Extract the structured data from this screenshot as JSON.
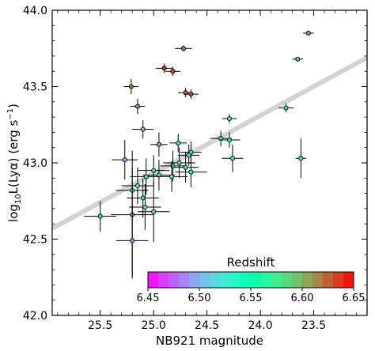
{
  "chart_data": {
    "type": "scatter",
    "xlabel": "NB921 magnitude",
    "ylabel_parts": {
      "base": "log",
      "sub": "10",
      "mid": "L(Lyα) (erg s",
      "sup": "−1",
      "end": ")"
    },
    "xlim": [
      25.95,
      23.0
    ],
    "ylim": [
      42.0,
      44.0
    ],
    "x_ticks": [
      {
        "value": 25.5,
        "label": "25.5"
      },
      {
        "value": 25.0,
        "label": "25.0"
      },
      {
        "value": 24.5,
        "label": "24.5"
      },
      {
        "value": 24.0,
        "label": "24.0"
      },
      {
        "value": 23.5,
        "label": "23.5"
      }
    ],
    "y_ticks": [
      {
        "value": 42.0,
        "label": "42.0"
      },
      {
        "value": 42.5,
        "label": "42.5"
      },
      {
        "value": 43.0,
        "label": "43.0"
      },
      {
        "value": 43.5,
        "label": "43.5"
      },
      {
        "value": 44.0,
        "label": "44.0"
      }
    ],
    "trend_line": {
      "x": [
        25.95,
        23.0
      ],
      "y": [
        42.57,
        43.69
      ],
      "color": "#d3d3d3"
    },
    "colorbar": {
      "title": "Redshift",
      "range": [
        6.45,
        6.65
      ],
      "ticks": [
        {
          "value": 6.45,
          "label": "6.45"
        },
        {
          "value": 6.5,
          "label": "6.50"
        },
        {
          "value": 6.55,
          "label": "6.55"
        },
        {
          "value": 6.6,
          "label": "6.60"
        },
        {
          "value": 6.65,
          "label": "6.65"
        }
      ],
      "colormap": "rainbow"
    },
    "points": [
      {
        "x": 23.55,
        "y": 43.85,
        "xerr": 0.05,
        "yerr": 0.01,
        "z": 6.61
      },
      {
        "x": 23.65,
        "y": 43.68,
        "xerr": 0.05,
        "yerr": 0.01,
        "z": 6.59
      },
      {
        "x": 24.72,
        "y": 43.75,
        "xerr": 0.08,
        "yerr": 0.02,
        "z": 6.62
      },
      {
        "x": 24.9,
        "y": 43.62,
        "xerr": 0.08,
        "yerr": 0.03,
        "z": 6.64
      },
      {
        "x": 24.82,
        "y": 43.6,
        "xerr": 0.07,
        "yerr": 0.03,
        "z": 6.63
      },
      {
        "x": 25.21,
        "y": 43.5,
        "xerr": 0.07,
        "yerr": 0.05,
        "z": 6.62
      },
      {
        "x": 24.7,
        "y": 43.46,
        "xerr": 0.07,
        "yerr": 0.03,
        "z": 6.62
      },
      {
        "x": 24.65,
        "y": 43.45,
        "xerr": 0.07,
        "yerr": 0.03,
        "z": 6.63
      },
      {
        "x": 25.15,
        "y": 43.37,
        "xerr": 0.07,
        "yerr": 0.05,
        "z": 6.61
      },
      {
        "x": 23.76,
        "y": 43.36,
        "xerr": 0.07,
        "yerr": 0.03,
        "z": 6.54
      },
      {
        "x": 24.29,
        "y": 43.29,
        "xerr": 0.07,
        "yerr": 0.03,
        "z": 6.57
      },
      {
        "x": 25.1,
        "y": 43.22,
        "xerr": 0.1,
        "yerr": 0.06,
        "z": 6.5
      },
      {
        "x": 24.37,
        "y": 43.16,
        "xerr": 0.1,
        "yerr": 0.05,
        "z": 6.54
      },
      {
        "x": 24.29,
        "y": 43.15,
        "xerr": 0.1,
        "yerr": 0.05,
        "z": 6.55
      },
      {
        "x": 24.77,
        "y": 43.13,
        "xerr": 0.08,
        "yerr": 0.06,
        "z": 6.53
      },
      {
        "x": 24.95,
        "y": 43.12,
        "xerr": 0.08,
        "yerr": 0.08,
        "z": 6.6
      },
      {
        "x": 24.65,
        "y": 43.07,
        "xerr": 0.1,
        "yerr": 0.07,
        "z": 6.55
      },
      {
        "x": 24.67,
        "y": 43.05,
        "xerr": 0.1,
        "yerr": 0.07,
        "z": 6.52
      },
      {
        "x": 24.26,
        "y": 43.03,
        "xerr": 0.1,
        "yerr": 0.09,
        "z": 6.54
      },
      {
        "x": 23.62,
        "y": 43.03,
        "xerr": 0.05,
        "yerr": 0.13,
        "z": 6.53
      },
      {
        "x": 25.27,
        "y": 43.02,
        "xerr": 0.12,
        "yerr": 0.13,
        "z": 6.5
      },
      {
        "x": 24.76,
        "y": 43.0,
        "xerr": 0.15,
        "yerr": 0.1,
        "z": 6.57
      },
      {
        "x": 24.82,
        "y": 42.98,
        "xerr": 0.12,
        "yerr": 0.1,
        "z": 6.56
      },
      {
        "x": 24.7,
        "y": 42.97,
        "xerr": 0.12,
        "yerr": 0.1,
        "z": 6.57
      },
      {
        "x": 25.0,
        "y": 42.95,
        "xerr": 0.15,
        "yerr": 0.1,
        "z": 6.56
      },
      {
        "x": 24.65,
        "y": 42.94,
        "xerr": 0.15,
        "yerr": 0.1,
        "z": 6.53
      },
      {
        "x": 24.95,
        "y": 42.92,
        "xerr": 0.15,
        "yerr": 0.1,
        "z": 6.54
      },
      {
        "x": 25.07,
        "y": 42.91,
        "xerr": 0.15,
        "yerr": 0.12,
        "z": 6.53
      },
      {
        "x": 24.83,
        "y": 42.91,
        "xerr": 0.15,
        "yerr": 0.1,
        "z": 6.52
      },
      {
        "x": 25.15,
        "y": 42.85,
        "xerr": 0.15,
        "yerr": 0.12,
        "z": 6.56
      },
      {
        "x": 25.2,
        "y": 42.82,
        "xerr": 0.15,
        "yerr": 0.15,
        "z": 6.57
      },
      {
        "x": 25.1,
        "y": 42.77,
        "xerr": 0.15,
        "yerr": 0.13,
        "z": 6.55
      },
      {
        "x": 25.08,
        "y": 42.71,
        "xerr": 0.15,
        "yerr": 0.15,
        "z": 6.52
      },
      {
        "x": 25.0,
        "y": 42.68,
        "xerr": 0.15,
        "yerr": 0.2,
        "z": 6.57
      },
      {
        "x": 25.2,
        "y": 42.66,
        "xerr": 0.2,
        "yerr": 0.42,
        "z": 6.49
      },
      {
        "x": 25.5,
        "y": 42.65,
        "xerr": 0.15,
        "yerr": 0.1,
        "z": 6.55
      },
      {
        "x": 25.2,
        "y": 42.49,
        "xerr": 0.15,
        "yerr": 0.23,
        "z": 6.49
      }
    ]
  }
}
